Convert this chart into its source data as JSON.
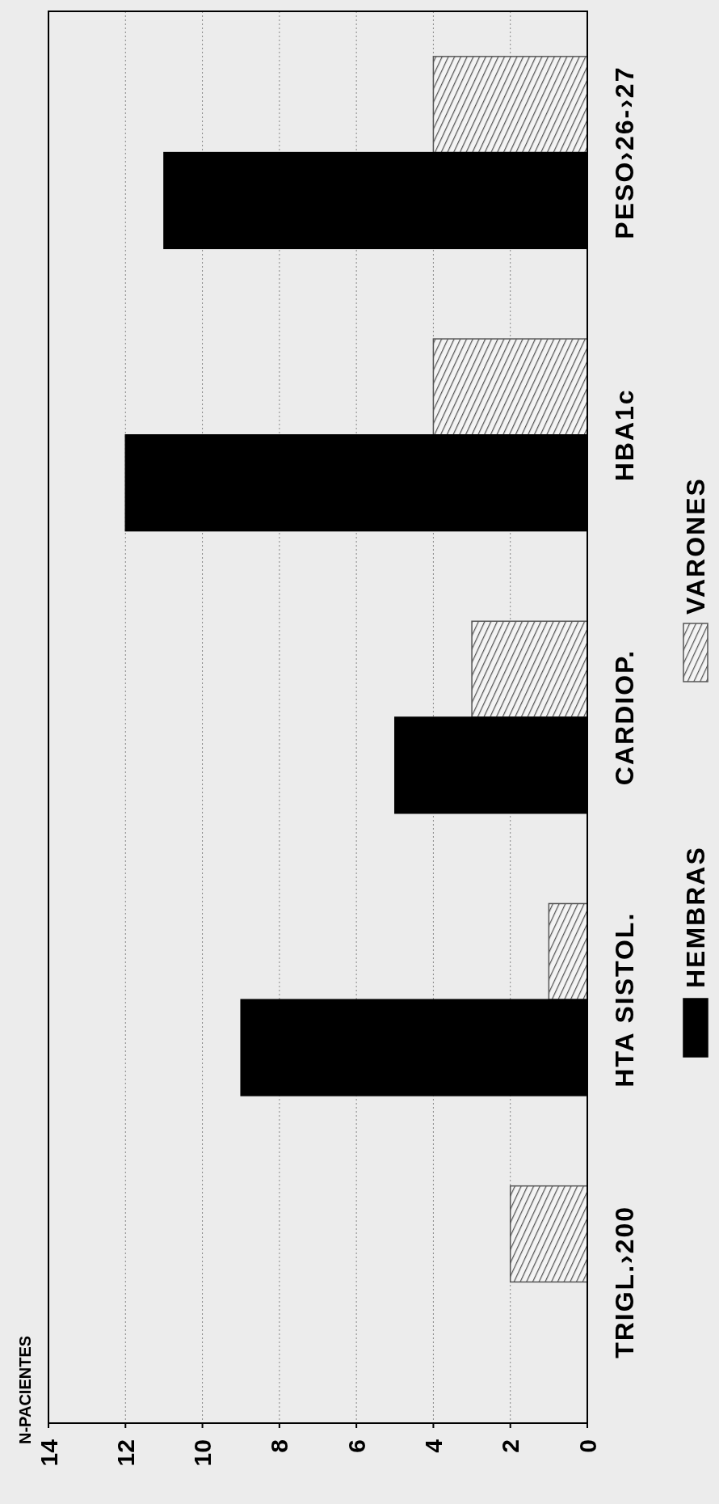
{
  "chart_data": {
    "type": "bar",
    "orientation": "horizontal",
    "ylabel": "N-PACIENTES",
    "categories": [
      "PESO›26-›27",
      "HBA1c",
      "CARDIOP.",
      "HTA SISTOL.",
      "TRIGL.›200"
    ],
    "series": [
      {
        "name": "VARONES",
        "color": "#555555",
        "values": [
          4,
          4,
          3,
          1,
          2
        ]
      },
      {
        "name": "HEMBRAS",
        "color": "#000000",
        "values": [
          11,
          12,
          5,
          9,
          0
        ]
      }
    ],
    "xlim": [
      14,
      0
    ],
    "xticks": [
      14,
      12,
      10,
      8,
      6,
      4,
      2,
      0
    ],
    "grid": "x",
    "legend": "right"
  }
}
